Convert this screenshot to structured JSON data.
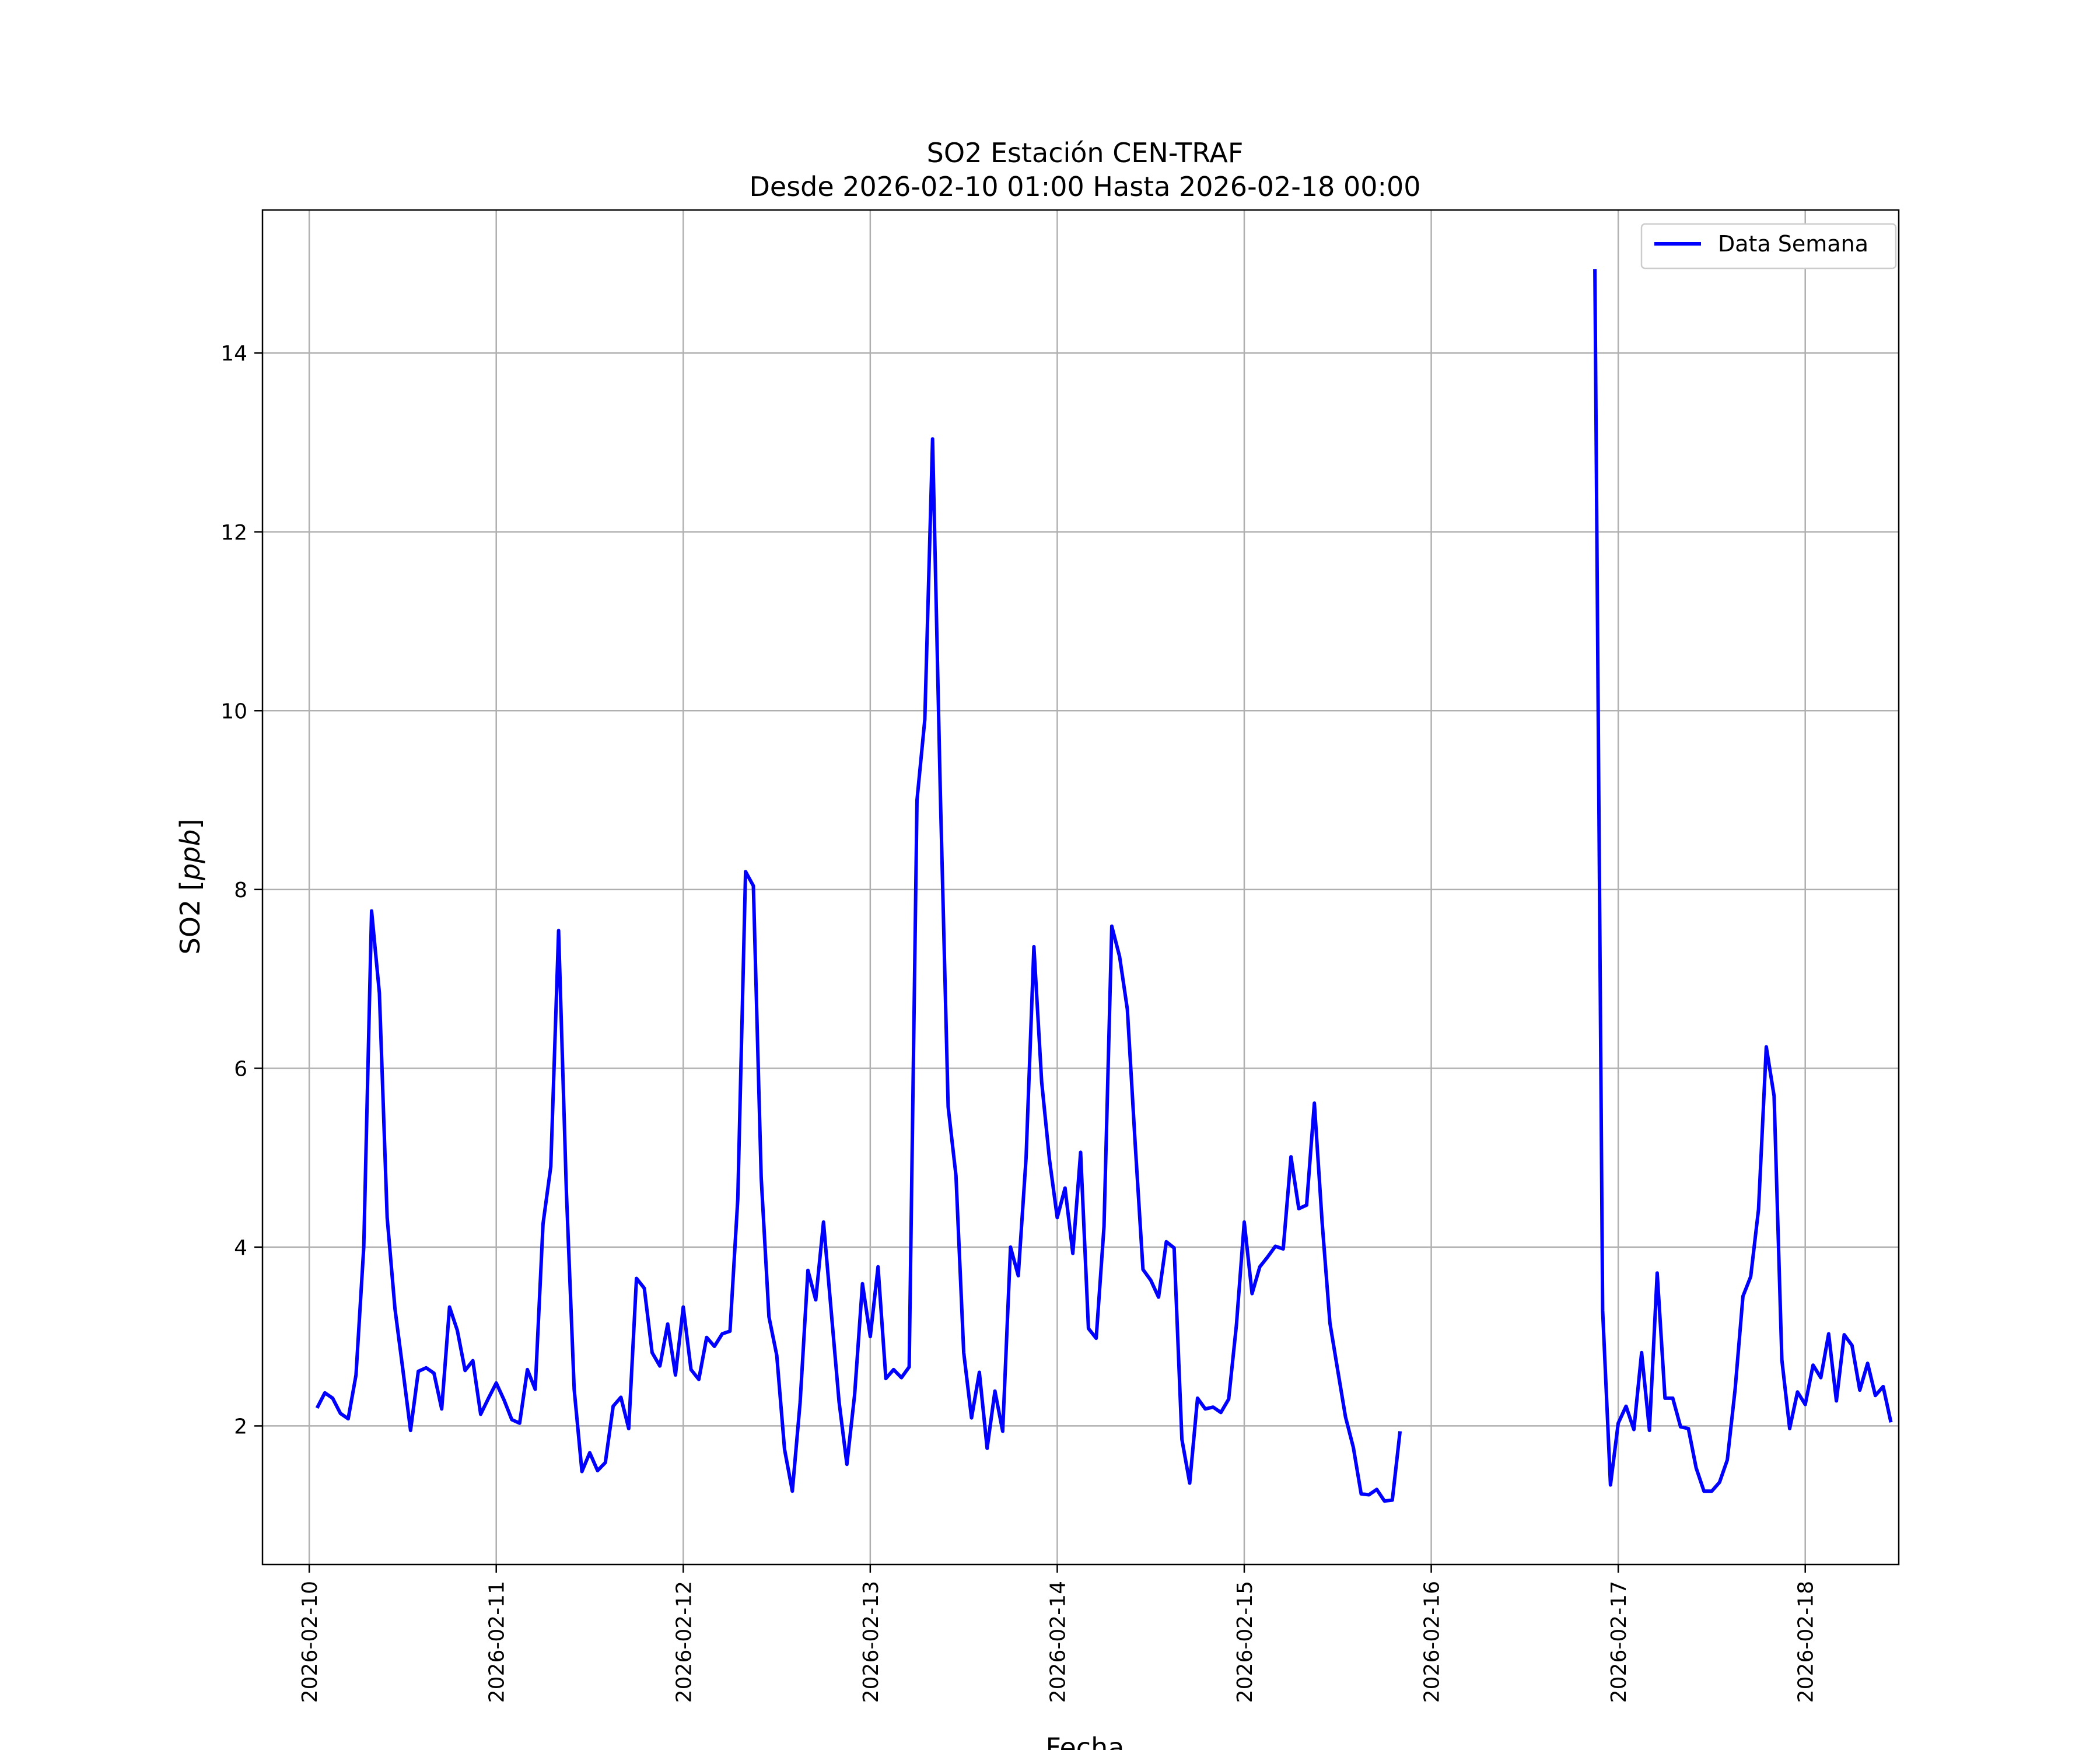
{
  "chart_data": {
    "type": "line",
    "title": "SO2 Estación CEN-TRAF",
    "subtitle": "Desde 2026-02-10 01:00 Hasta 2026-02-18 00:00",
    "xlabel": "Fecha",
    "ylabel_text": "SO2 [",
    "ylabel_unit": "ppb",
    "ylabel_close": "]",
    "x_ticks": [
      "2026-02-10",
      "2026-02-11",
      "2026-02-12",
      "2026-02-13",
      "2026-02-14",
      "2026-02-15",
      "2026-02-16",
      "2026-02-17",
      "2026-02-18"
    ],
    "y_ticks": [
      2,
      4,
      6,
      8,
      10,
      12,
      14
    ],
    "xlim_hours": [
      -6,
      204
    ],
    "ylim": [
      0.45,
      15.6
    ],
    "grid": true,
    "legend_position": "top-right",
    "series": [
      {
        "name": "Data Semana",
        "color": "#0000ff",
        "start": "2026-02-10 01:00",
        "interval_hours": 1,
        "values": [
          2.2,
          2.37,
          2.31,
          2.14,
          2.08,
          2.57,
          4.0,
          7.76,
          6.84,
          4.33,
          3.31,
          2.64,
          1.95,
          2.61,
          2.65,
          2.59,
          2.19,
          3.33,
          3.07,
          2.62,
          2.73,
          2.13,
          2.31,
          2.48,
          2.29,
          2.07,
          2.03,
          2.63,
          2.41,
          4.26,
          4.9,
          7.54,
          4.63,
          2.41,
          1.49,
          1.7,
          1.5,
          1.59,
          2.22,
          2.32,
          1.97,
          3.65,
          3.54,
          2.82,
          2.67,
          3.14,
          2.57,
          3.33,
          2.63,
          2.52,
          2.99,
          2.89,
          3.03,
          3.06,
          4.54,
          8.2,
          8.04,
          4.78,
          3.22,
          2.79,
          1.74,
          1.27,
          2.26,
          3.74,
          3.41,
          4.28,
          3.27,
          2.27,
          1.57,
          2.35,
          3.59,
          3.0,
          3.78,
          2.53,
          2.63,
          2.54,
          2.66,
          9.0,
          9.9,
          13.04,
          9.05,
          5.57,
          4.8,
          2.82,
          2.09,
          2.6,
          1.75,
          2.39,
          1.94,
          4.0,
          3.68,
          5.0,
          7.36,
          5.85,
          4.98,
          4.33,
          4.66,
          3.93,
          5.06,
          3.09,
          2.98,
          4.23,
          7.59,
          7.25,
          6.66,
          5.16,
          3.75,
          3.63,
          3.44,
          4.06,
          3.99,
          1.85,
          1.36,
          2.31,
          2.19,
          2.21,
          2.15,
          2.3,
          3.13,
          4.28,
          3.48,
          3.78,
          3.89,
          4.01,
          3.98,
          5.01,
          4.43,
          4.47,
          5.61,
          4.27,
          3.15,
          2.62,
          2.1,
          1.76,
          1.24,
          1.23,
          1.29,
          1.16,
          1.17,
          1.94,
          null,
          null,
          null,
          null,
          null,
          null,
          null,
          null,
          null,
          null,
          null,
          null,
          null,
          null,
          null,
          null,
          null,
          null,
          null,
          null,
          null,
          null,
          null,
          null,
          14.94,
          3.29,
          1.34,
          2.03,
          2.22,
          1.96,
          2.82,
          1.95,
          3.71,
          2.31,
          2.31,
          1.99,
          1.97,
          1.53,
          1.27,
          1.27,
          1.37,
          1.62,
          2.41,
          3.45,
          3.67,
          4.42,
          6.24,
          5.69,
          2.74,
          1.97,
          2.38,
          2.24,
          2.68,
          2.54,
          3.03,
          2.28,
          3.02,
          2.9,
          2.4,
          2.7,
          2.34,
          2.44,
          2.04
        ]
      }
    ]
  }
}
